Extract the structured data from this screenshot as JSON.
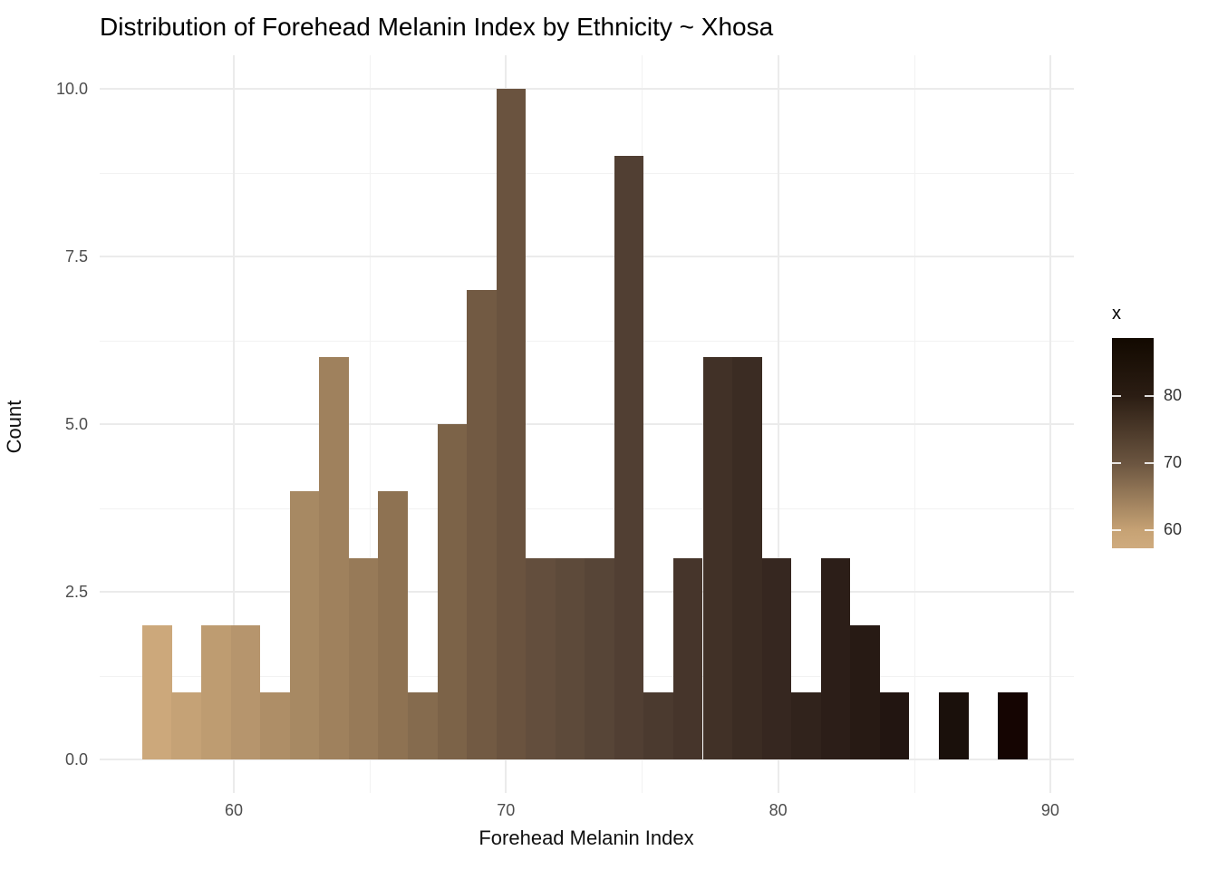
{
  "title": "Distribution of Forehead Melanin Index by Ethnicity ~ Xhosa",
  "chart_data": {
    "type": "bar",
    "subtype": "histogram",
    "title": "Distribution of Forehead Melanin Index by Ethnicity ~ Xhosa",
    "xlabel": "Forehead Melanin Index",
    "ylabel": "Count",
    "x_ticks": [
      60,
      70,
      80,
      90
    ],
    "x_minor_ticks": [
      65,
      75,
      85
    ],
    "y_ticks": [
      "0.0",
      "2.5",
      "5.0",
      "7.5",
      "10.0"
    ],
    "y_tick_values": [
      0,
      2.5,
      5,
      7.5,
      10
    ],
    "y_minor_ticks": [
      1.25,
      3.75,
      6.25,
      8.75
    ],
    "xlim": [
      55.0,
      90.9
    ],
    "ylim": [
      -0.5,
      10.5
    ],
    "grid": "on",
    "legend_position": "right",
    "bin_width": 1.0843,
    "total_count": 94,
    "bins": [
      {
        "center": 57.18,
        "count": 2,
        "color": "#cca87b"
      },
      {
        "center": 58.26,
        "count": 1,
        "color": "#c5a276"
      },
      {
        "center": 59.35,
        "count": 2,
        "color": "#be9c71"
      },
      {
        "center": 60.43,
        "count": 2,
        "color": "#b6956d"
      },
      {
        "center": 61.52,
        "count": 1,
        "color": "#ae8e67"
      },
      {
        "center": 62.6,
        "count": 4,
        "color": "#a78963"
      },
      {
        "center": 63.68,
        "count": 6,
        "color": "#9f815d"
      },
      {
        "center": 64.77,
        "count": 3,
        "color": "#977a58"
      },
      {
        "center": 65.85,
        "count": 4,
        "color": "#8e7252"
      },
      {
        "center": 66.94,
        "count": 1,
        "color": "#856b4e"
      },
      {
        "center": 68.02,
        "count": 5,
        "color": "#7c6348"
      },
      {
        "center": 69.1,
        "count": 7,
        "color": "#725a43"
      },
      {
        "center": 70.19,
        "count": 10,
        "color": "#6a533f"
      },
      {
        "center": 71.27,
        "count": 3,
        "color": "#634e3d"
      },
      {
        "center": 72.36,
        "count": 3,
        "color": "#5d4a3a"
      },
      {
        "center": 73.44,
        "count": 3,
        "color": "#574537"
      },
      {
        "center": 74.52,
        "count": 9,
        "color": "#513f33"
      },
      {
        "center": 75.61,
        "count": 1,
        "color": "#4b3a2f"
      },
      {
        "center": 76.69,
        "count": 3,
        "color": "#46352b"
      },
      {
        "center": 77.78,
        "count": 6,
        "color": "#413127"
      },
      {
        "center": 78.86,
        "count": 6,
        "color": "#3b2c23"
      },
      {
        "center": 79.94,
        "count": 3,
        "color": "#362720"
      },
      {
        "center": 81.03,
        "count": 1,
        "color": "#31231c"
      },
      {
        "center": 82.11,
        "count": 3,
        "color": "#2c1e18"
      },
      {
        "center": 83.2,
        "count": 2,
        "color": "#271a14"
      },
      {
        "center": 84.28,
        "count": 1,
        "color": "#221511"
      },
      {
        "center": 85.36,
        "count": 0,
        "color": "#1e120d"
      },
      {
        "center": 86.45,
        "count": 1,
        "color": "#1a100b"
      },
      {
        "center": 87.53,
        "count": 0,
        "color": "#170a05"
      },
      {
        "center": 88.62,
        "count": 1,
        "color": "#150502"
      }
    ],
    "legend": {
      "title": "x",
      "min_value": 57.3,
      "max_value": 88.7,
      "tick_values": [
        80,
        70,
        60
      ],
      "tick_labels": [
        "80",
        "70",
        "60"
      ],
      "gradient_stops": [
        {
          "value": 57.3,
          "color": "#cfab7e"
        },
        {
          "value": 60,
          "color": "#c6a274"
        },
        {
          "value": 70,
          "color": "#6b5540"
        },
        {
          "value": 80,
          "color": "#2b1d13"
        },
        {
          "value": 88.7,
          "color": "#120900"
        }
      ]
    }
  }
}
